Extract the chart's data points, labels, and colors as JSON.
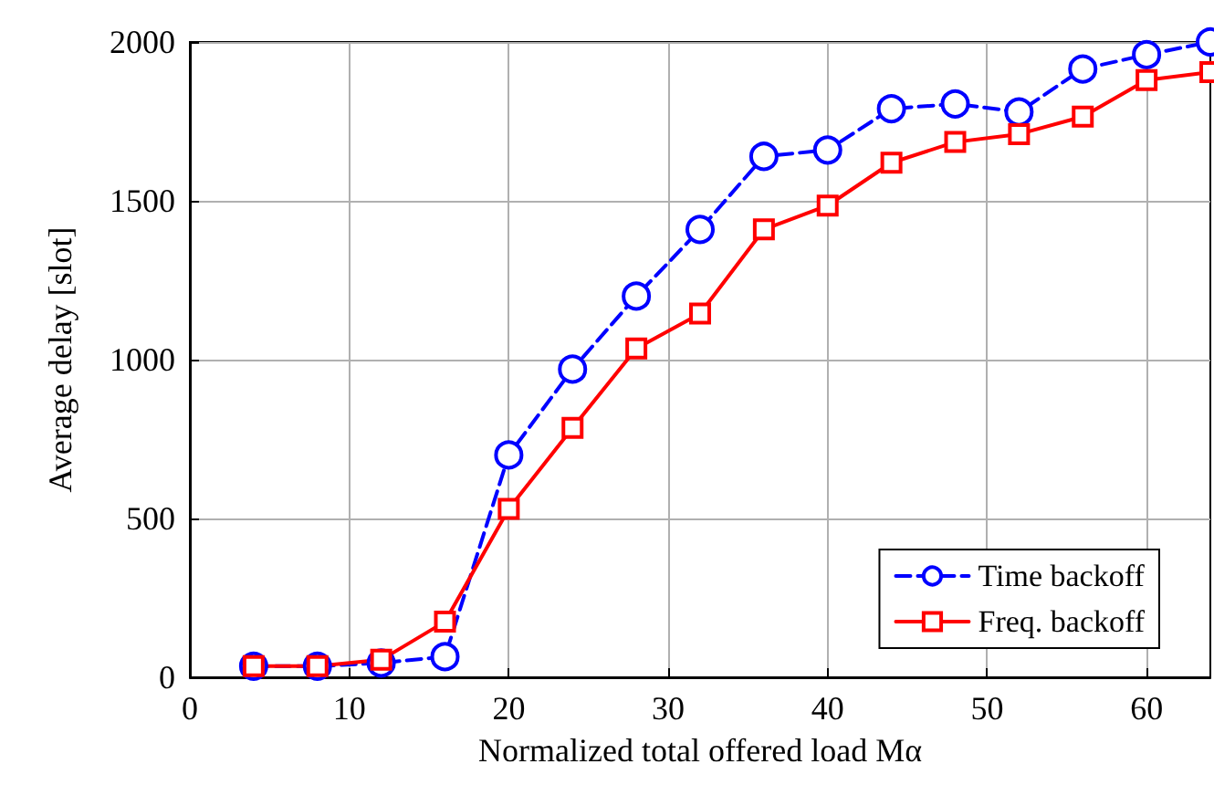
{
  "chart_data": {
    "type": "line",
    "xlabel": "Normalized total offered load Mα",
    "ylabel": "Average delay [slot]",
    "x": [
      4,
      8,
      12,
      16,
      20,
      24,
      28,
      32,
      36,
      40,
      44,
      48,
      52,
      56,
      60,
      64
    ],
    "series": [
      {
        "name": "Time backoff",
        "color": "#0000ff",
        "marker": "circle",
        "line_style": "dashed",
        "values": [
          35,
          35,
          45,
          65,
          700,
          970,
          1200,
          1410,
          1640,
          1660,
          1790,
          1805,
          1780,
          1915,
          1960,
          2000
        ]
      },
      {
        "name": "Freq. backoff",
        "color": "#ff0000",
        "marker": "square",
        "line_style": "solid",
        "values": [
          35,
          35,
          55,
          175,
          530,
          785,
          1035,
          1145,
          1410,
          1485,
          1620,
          1685,
          1710,
          1765,
          1880,
          1905
        ]
      }
    ],
    "xlim": [
      0,
      64
    ],
    "xticks": [
      0,
      10,
      20,
      30,
      40,
      50,
      60
    ],
    "ylim": [
      0,
      2000
    ],
    "yticks": [
      0,
      500,
      1000,
      1500,
      2000
    ],
    "grid": true,
    "legend": "bottom right"
  }
}
